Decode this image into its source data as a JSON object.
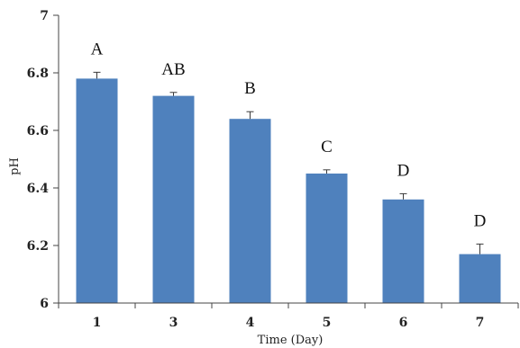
{
  "chart_data": {
    "type": "bar",
    "title": "",
    "xlabel": "Time (Day)",
    "ylabel": "pH",
    "categories": [
      "1",
      "3",
      "4",
      "5",
      "6",
      "7"
    ],
    "values": [
      6.78,
      6.72,
      6.64,
      6.45,
      6.36,
      6.17
    ],
    "error_bars": [
      0.022,
      0.012,
      0.025,
      0.013,
      0.02,
      0.035
    ],
    "significance_labels": [
      "A",
      "AB",
      "B",
      "C",
      "D",
      "D"
    ],
    "ylim": [
      6,
      7
    ],
    "yticks": [
      "6",
      "6.2",
      "6.4",
      "6.6",
      "6.8",
      "7"
    ],
    "grid": false,
    "bar_color": "#4F81BD"
  }
}
